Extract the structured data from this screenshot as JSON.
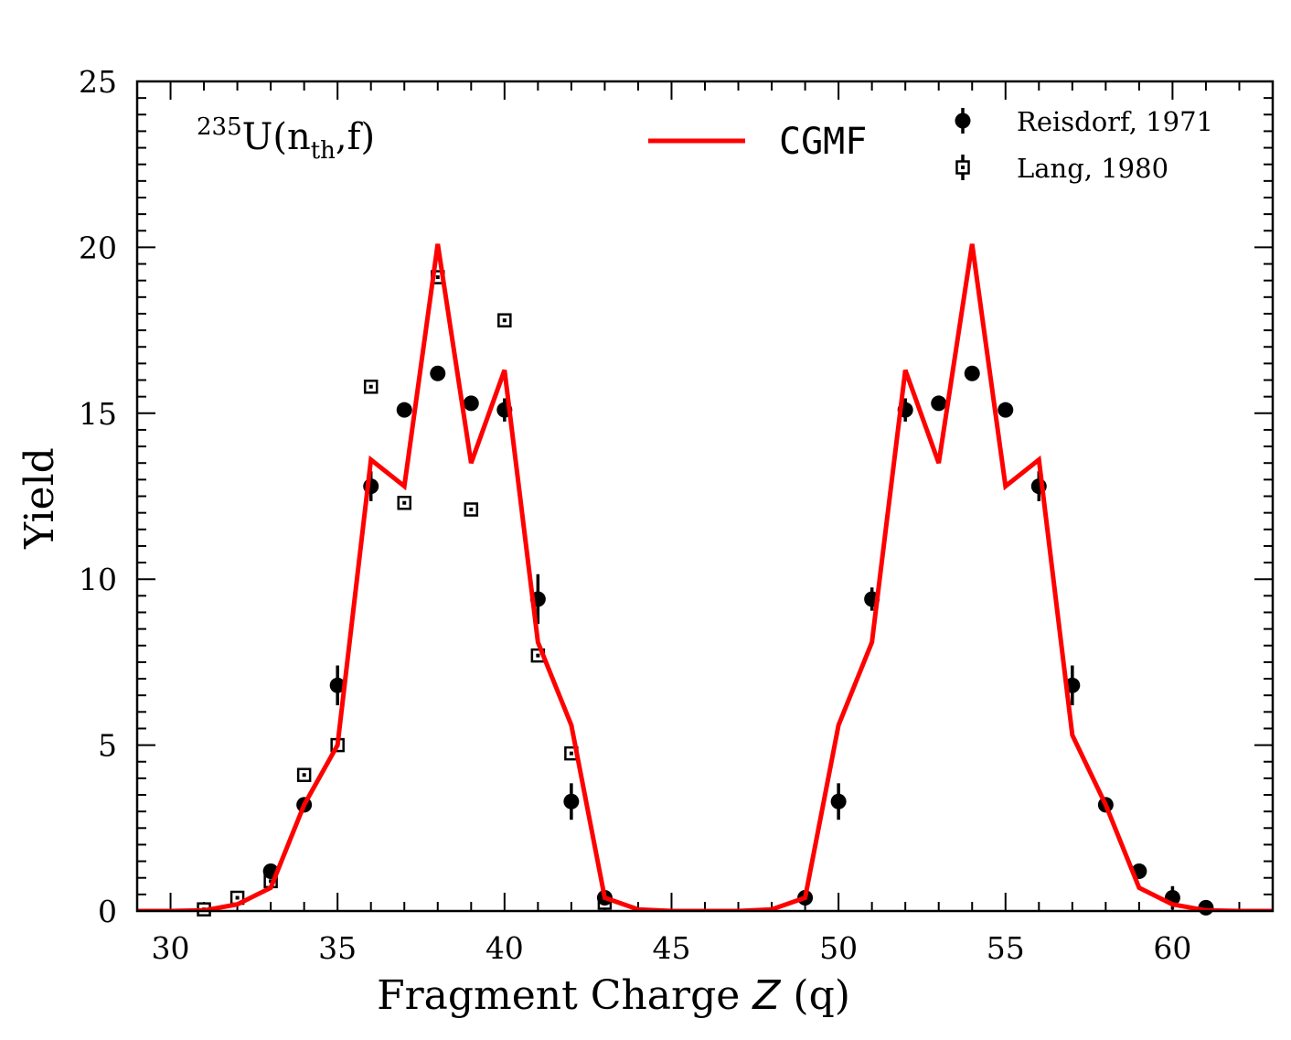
{
  "chart_data": {
    "type": "line",
    "annotation": {
      "superscript": "235",
      "main": "U(n",
      "subscript": "th",
      "suffix": ",f)"
    },
    "xlabel_main": "Fragment Charge ",
    "xlabel_italic": "Z",
    "xlabel_unit": " (q)",
    "ylabel": "Yield",
    "xlim": [
      29,
      63
    ],
    "ylim": [
      0,
      25
    ],
    "xticks": [
      30,
      35,
      40,
      45,
      50,
      55,
      60
    ],
    "yticks": [
      0,
      5,
      10,
      15,
      20,
      25
    ],
    "legend_position": "top-right",
    "series": [
      {
        "name": "CGMF",
        "kind": "line",
        "color": "#ff0000",
        "x": [
          29,
          30,
          31,
          32,
          33,
          34,
          35,
          36,
          37,
          38,
          39,
          40,
          41,
          42,
          43,
          44,
          45,
          46,
          47,
          48,
          49,
          50,
          51,
          52,
          53,
          54,
          55,
          56,
          57,
          58,
          59,
          60,
          61,
          62,
          63
        ],
        "y": [
          0,
          0,
          0.02,
          0.2,
          0.7,
          3.2,
          5.0,
          13.6,
          12.8,
          20.1,
          13.5,
          16.3,
          8.1,
          5.6,
          0.4,
          0.05,
          0,
          0,
          0,
          0.05,
          0.4,
          5.6,
          8.1,
          16.3,
          13.5,
          20.1,
          12.8,
          13.6,
          5.3,
          3.2,
          0.7,
          0.2,
          0.02,
          0,
          0
        ]
      },
      {
        "name": "Reisdorf, 1971",
        "kind": "points",
        "marker": "circle",
        "color": "#000000",
        "x": [
          33,
          34,
          35,
          36,
          37,
          38,
          39,
          40,
          41,
          42,
          43,
          49,
          50,
          51,
          52,
          53,
          54,
          55,
          56,
          57,
          58,
          59,
          60,
          61
        ],
        "y": [
          1.2,
          3.2,
          6.8,
          12.8,
          15.1,
          16.2,
          15.3,
          15.1,
          9.4,
          3.3,
          0.4,
          0.4,
          3.3,
          9.4,
          15.1,
          15.3,
          16.2,
          15.1,
          12.8,
          6.8,
          3.2,
          1.2,
          0.4,
          0.1
        ],
        "yerr": [
          0.15,
          0.15,
          0.6,
          0.45,
          0.2,
          0.2,
          0.2,
          0.35,
          0.75,
          0.55,
          0.05,
          0.05,
          0.55,
          0.35,
          0.35,
          0.2,
          0.2,
          0.2,
          0.45,
          0.6,
          0.15,
          0.15,
          0.35,
          0.05
        ]
      },
      {
        "name": "Lang, 1980",
        "kind": "points",
        "marker": "square-open",
        "color": "#000000",
        "x": [
          31,
          32,
          33,
          34,
          35,
          36,
          37,
          38,
          39,
          40,
          41,
          42,
          43
        ],
        "y": [
          0.05,
          0.4,
          0.9,
          4.1,
          5.0,
          15.8,
          12.3,
          19.1,
          12.1,
          17.8,
          7.7,
          4.75,
          0.25
        ],
        "yerr": [
          0.02,
          0.05,
          0.1,
          0.1,
          0.1,
          0.15,
          0.1,
          0.15,
          0.1,
          0.15,
          0.1,
          0.1,
          0.05
        ]
      }
    ]
  }
}
